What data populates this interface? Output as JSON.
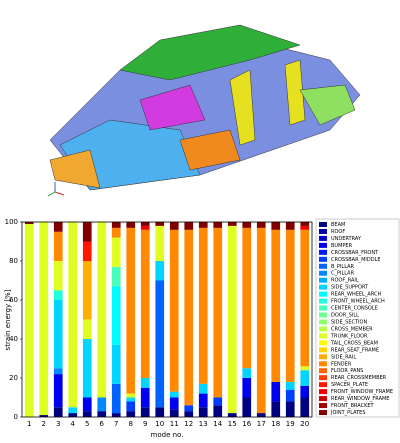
{
  "chart_data": {
    "type": "stacked_bar",
    "xlabel": "mode no.",
    "ylabel": "strain energy [%]",
    "categories": [
      "1",
      "2",
      "3",
      "4",
      "5",
      "6",
      "7",
      "8",
      "9",
      "10",
      "11",
      "12",
      "13",
      "14",
      "15",
      "16",
      "17",
      "18",
      "19",
      "20"
    ],
    "ylim": [
      0,
      100
    ],
    "yticks": [
      0,
      20,
      40,
      60,
      80,
      100
    ],
    "series": [
      {
        "name": "BEAM",
        "color": "#000080",
        "values": [
          0,
          1,
          5,
          2,
          3,
          3,
          2,
          3,
          5,
          5,
          4,
          3,
          5,
          6,
          2,
          10,
          2,
          8,
          8,
          10
        ]
      },
      {
        "name": "ROOF",
        "color": "#0000a5",
        "values": [
          0,
          0,
          0,
          0,
          0,
          0,
          0,
          0,
          0,
          0,
          0,
          0,
          0,
          0,
          0,
          0,
          0,
          0,
          0,
          0
        ]
      },
      {
        "name": "UNDERTRAY",
        "color": "#0000cb",
        "values": [
          0,
          0,
          0,
          0,
          0,
          0,
          0,
          0,
          0,
          0,
          0,
          0,
          0,
          0,
          0,
          0,
          0,
          0,
          0,
          0
        ]
      },
      {
        "name": "BUMPER",
        "color": "#0000f1",
        "values": [
          0,
          0,
          17,
          0,
          7,
          0,
          0,
          0,
          10,
          0,
          6,
          0,
          7,
          0,
          0,
          10,
          0,
          10,
          0,
          6
        ]
      },
      {
        "name": "CROSSBAR_FRONT",
        "color": "#0018ff",
        "values": [
          0,
          0,
          0,
          0,
          0,
          0,
          0,
          0,
          0,
          0,
          0,
          0,
          0,
          0,
          0,
          0,
          0,
          0,
          0,
          0
        ]
      },
      {
        "name": "CROSSBAR_MIDDLE",
        "color": "#003dff",
        "values": [
          0,
          0,
          0,
          0,
          0,
          0,
          0,
          5,
          0,
          0,
          0,
          3,
          0,
          4,
          0,
          0,
          0,
          0,
          6,
          0
        ]
      },
      {
        "name": "B_PILLAR",
        "color": "#0063ff",
        "values": [
          0,
          0,
          0,
          0,
          0,
          0,
          15,
          0,
          0,
          65,
          0,
          0,
          0,
          0,
          0,
          0,
          0,
          0,
          0,
          0
        ]
      },
      {
        "name": "C_PILLAR",
        "color": "#0089ff",
        "values": [
          0,
          0,
          3,
          0,
          0,
          7,
          0,
          0,
          0,
          0,
          0,
          0,
          0,
          0,
          0,
          0,
          0,
          0,
          0,
          0
        ]
      },
      {
        "name": "ROOF_RAIL",
        "color": "#00aeff",
        "values": [
          0,
          0,
          0,
          0,
          0,
          0,
          0,
          0,
          0,
          0,
          0,
          0,
          0,
          0,
          0,
          0,
          0,
          0,
          0,
          0
        ]
      },
      {
        "name": "SIDE_SUPPORT",
        "color": "#00d4ff",
        "values": [
          0,
          0,
          35,
          3,
          30,
          0,
          20,
          2,
          5,
          10,
          3,
          0,
          5,
          0,
          0,
          5,
          0,
          0,
          4,
          8
        ]
      },
      {
        "name": "REAR_WHEEL_ARCH",
        "color": "#00faff",
        "values": [
          0,
          0,
          0,
          0,
          0,
          0,
          30,
          0,
          0,
          0,
          0,
          0,
          0,
          0,
          0,
          0,
          0,
          0,
          0,
          0
        ]
      },
      {
        "name": "FRONT_WHEEL_ARCH",
        "color": "#21ffde",
        "values": [
          0,
          0,
          5,
          0,
          0,
          0,
          0,
          0,
          0,
          0,
          0,
          0,
          0,
          0,
          0,
          0,
          0,
          0,
          0,
          0
        ]
      },
      {
        "name": "CENTER_CONSOLE",
        "color": "#47ffb8",
        "values": [
          0,
          0,
          0,
          0,
          0,
          0,
          10,
          0,
          0,
          0,
          0,
          0,
          0,
          0,
          0,
          0,
          0,
          0,
          0,
          0
        ]
      },
      {
        "name": "DOOR_SILL",
        "color": "#6dff92",
        "values": [
          0,
          0,
          0,
          0,
          0,
          0,
          0,
          0,
          0,
          0,
          0,
          0,
          0,
          0,
          0,
          0,
          0,
          0,
          0,
          0
        ]
      },
      {
        "name": "SIDE_SECTION",
        "color": "#92ff6d",
        "values": [
          0,
          0,
          0,
          0,
          0,
          0,
          0,
          0,
          0,
          0,
          0,
          0,
          0,
          0,
          0,
          0,
          0,
          0,
          0,
          0
        ]
      },
      {
        "name": "CROSS_MEMBER",
        "color": "#b8ff47",
        "values": [
          0,
          0,
          0,
          0,
          0,
          0,
          0,
          0,
          0,
          0,
          0,
          0,
          0,
          0,
          0,
          0,
          0,
          0,
          0,
          0
        ]
      },
      {
        "name": "TRUNK_FLOOR",
        "color": "#deff21",
        "values": [
          99,
          99,
          15,
          95,
          10,
          90,
          15,
          2,
          0,
          18,
          0,
          0,
          0,
          0,
          96,
          0,
          0,
          0,
          0,
          2
        ]
      },
      {
        "name": "TAIL_CROSS_BEAM",
        "color": "#fffa00",
        "values": [
          0,
          0,
          0,
          0,
          0,
          0,
          0,
          0,
          0,
          0,
          0,
          0,
          0,
          0,
          0,
          0,
          0,
          0,
          0,
          0
        ]
      },
      {
        "name": "REAR_SEAT_FRAME",
        "color": "#ffd400",
        "values": [
          0,
          0,
          0,
          0,
          0,
          0,
          0,
          0,
          0,
          0,
          0,
          0,
          0,
          0,
          0,
          0,
          0,
          0,
          0,
          0
        ]
      },
      {
        "name": "SIDE_RAIL",
        "color": "#ffae00",
        "values": [
          0,
          0,
          0,
          0,
          30,
          0,
          0,
          0,
          0,
          0,
          0,
          0,
          0,
          0,
          0,
          0,
          0,
          0,
          0,
          0
        ]
      },
      {
        "name": "FENDER",
        "color": "#ff8900",
        "values": [
          0,
          0,
          15,
          0,
          0,
          0,
          5,
          85,
          76,
          0,
          83,
          90,
          80,
          87,
          0,
          72,
          95,
          78,
          78,
          70
        ]
      },
      {
        "name": "FLOOR_PANS",
        "color": "#ff6300",
        "values": [
          0,
          0,
          0,
          0,
          0,
          0,
          0,
          0,
          0,
          0,
          0,
          0,
          0,
          0,
          0,
          0,
          0,
          0,
          0,
          0
        ]
      },
      {
        "name": "REAR_CROSSMEMBER",
        "color": "#ff3d00",
        "values": [
          0,
          0,
          0,
          0,
          0,
          0,
          0,
          0,
          0,
          0,
          0,
          0,
          0,
          0,
          0,
          0,
          0,
          0,
          0,
          0
        ]
      },
      {
        "name": "SPACER_PLATE",
        "color": "#ff1800",
        "values": [
          0,
          0,
          0,
          0,
          10,
          0,
          0,
          0,
          0,
          0,
          0,
          0,
          0,
          0,
          0,
          0,
          0,
          0,
          0,
          0
        ]
      },
      {
        "name": "FRONT_WINDOW_FRAME",
        "color": "#f10000",
        "values": [
          0,
          0,
          0,
          0,
          0,
          0,
          0,
          0,
          2,
          0,
          0,
          0,
          0,
          0,
          0,
          0,
          0,
          0,
          0,
          2
        ]
      },
      {
        "name": "REAR_WINDOW_FRAME",
        "color": "#cb0000",
        "values": [
          0,
          0,
          0,
          0,
          0,
          0,
          0,
          0,
          0,
          0,
          0,
          0,
          0,
          0,
          0,
          0,
          0,
          0,
          0,
          0
        ]
      },
      {
        "name": "FRONT_BRACKET",
        "color": "#a50000",
        "values": [
          0,
          0,
          0,
          0,
          0,
          0,
          0,
          0,
          0,
          0,
          0,
          0,
          0,
          0,
          0,
          0,
          0,
          0,
          0,
          0
        ]
      },
      {
        "name": "JOINT_PLATES",
        "color": "#800000",
        "values": [
          1,
          0,
          5,
          0,
          10,
          0,
          3,
          3,
          2,
          2,
          4,
          4,
          3,
          3,
          2,
          3,
          3,
          4,
          4,
          2
        ]
      }
    ]
  }
}
